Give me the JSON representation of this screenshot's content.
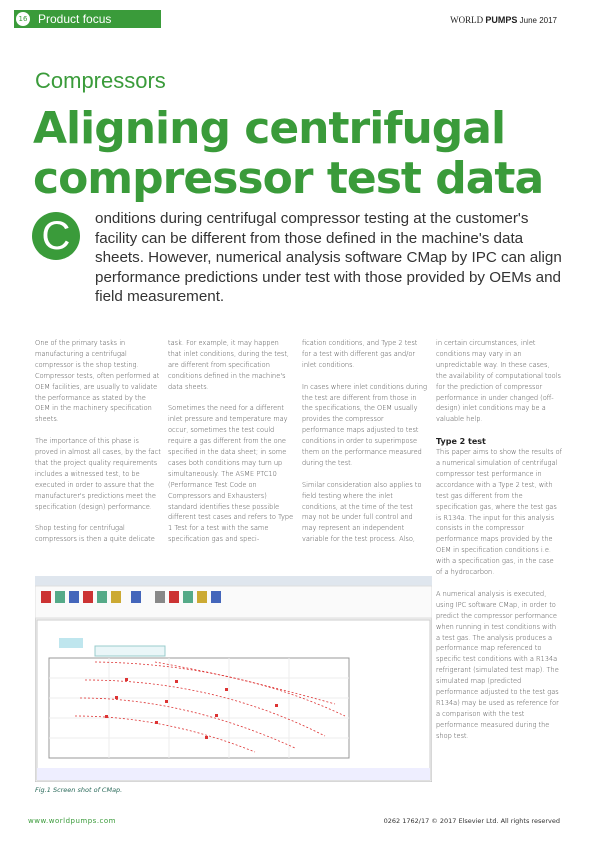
{
  "header": {
    "page_number": "16",
    "section_tab": "Product focus",
    "publication_light": "WORLD",
    "publication_bold": "PUMPS",
    "date": "June 2017"
  },
  "article": {
    "section": "Compressors",
    "title_lines": [
      "Aligning centrifugal",
      "compressor test data"
    ],
    "drop_cap": "C",
    "intro": "onditions during centrifugal compressor testing at the customer's facility can be different from those defined in the machine's data sheets. However, numerical analysis software CMap by IPC can align performance predictions under test with those provided by OEMs and field measurement.",
    "columns": [
      {
        "paragraphs": [
          "One of the primary tasks in manufacturing a centrifugal compressor is the shop testing. Compressor tests, often performed at OEM facilities, are usually to validate the performance as stated by the OEM in the machinery specification sheets.",
          "The importance of this phase is proved in almost all cases, by the fact that the project quality requirements includes a witnessed test, to be executed in order to assure that the manufacturer's predictions meet the specification (design) performance.",
          "Shop testing for centrifugal compressors is then a quite delicate"
        ]
      },
      {
        "paragraphs": [
          "task. For example, it may happen that inlet conditions, during the test, are different from specification conditions defined in the machine's data sheets.",
          "Sometimes the need for a different inlet pressure and temperature may occur, sometimes the test could require a gas different from the one specified in the data sheet; in some cases both conditions may turn up simultaneously. The ASME PTC10 (Performance Test Code on Compressors and Exhausters) standard identifies these possible different test cases and refers to Type 1 Test for a test with the same specification gas and speci-"
        ]
      },
      {
        "paragraphs": [
          "fication conditions, and Type 2 test for a test with different gas and/or inlet conditions.",
          "In cases where inlet conditions during the test are different from those in the specifications, the OEM usually provides the compressor performance maps adjusted to test conditions in order to superimpose them on the performance measured during the test.",
          "Similar consideration also applies to field testing where the inlet conditions, at the time of the test may not be under full control and may represent an independent variable for the test process. Also,"
        ]
      },
      {
        "paragraphs": [
          "in certain circumstances, inlet conditions may vary in an unpredictable way. In these cases, the availability of computational tools for the prediction of compressor performance in under changed (off-design) inlet conditions may be a valuable help."
        ],
        "heading": "Type 2 test",
        "paragraphs_after": [
          "This paper aims to show the results of a numerical simulation of centrifugal compressor test performance in accordance with a Type 2 test, with test gas different from the specification gas, where the test gas is R134a. The input for this analysis consists in the compressor performance maps provided by the OEM in specification conditions i.e. with a specification gas, in the case of a hydrocarbon.",
          "A numerical analysis is executed, using IPC software CMap, in order to predict the compressor performance when running in test conditions with a test gas. The analysis produces a performance map referenced to specific test conditions with a R134a refrigerant (simulated test map). The simulated map (predicted performance adjusted to the test gas R134a) may be used as reference for a comparison with the test performance measured during the shop test."
        ]
      }
    ],
    "figure_caption": "Fig.1 Screen shot of CMap."
  },
  "footer": {
    "website": "www.worldpumps.com",
    "copyright": "0262 1762/17 © 2017 Elsevier Ltd. All rights reserved"
  }
}
